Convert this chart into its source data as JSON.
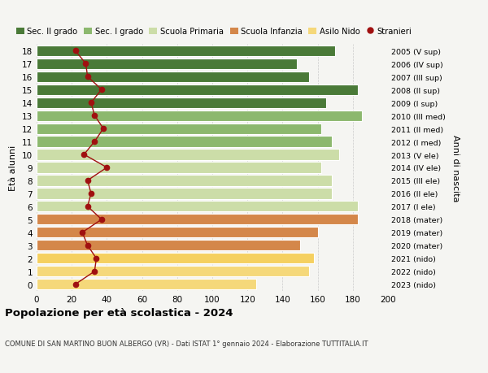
{
  "ages": [
    0,
    1,
    2,
    3,
    4,
    5,
    6,
    7,
    8,
    9,
    10,
    11,
    12,
    13,
    14,
    15,
    16,
    17,
    18
  ],
  "bar_values": [
    125,
    155,
    158,
    150,
    160,
    183,
    183,
    168,
    168,
    162,
    172,
    168,
    162,
    185,
    165,
    183,
    155,
    148,
    170
  ],
  "anni_nascita": [
    "2023 (nido)",
    "2022 (nido)",
    "2021 (nido)",
    "2020 (mater)",
    "2019 (mater)",
    "2018 (mater)",
    "2017 (I ele)",
    "2016 (II ele)",
    "2015 (III ele)",
    "2014 (IV ele)",
    "2013 (V ele)",
    "2012 (I med)",
    "2011 (II med)",
    "2010 (III med)",
    "2009 (I sup)",
    "2008 (II sup)",
    "2007 (III sup)",
    "2006 (IV sup)",
    "2005 (V sup)"
  ],
  "bar_colors": [
    "#f5d87a",
    "#f5d87a",
    "#f5d060",
    "#d4874a",
    "#d4874a",
    "#d4874a",
    "#ccdda8",
    "#ccdda8",
    "#ccdda8",
    "#ccdda8",
    "#ccdda8",
    "#8cb86e",
    "#8cb86e",
    "#8cb86e",
    "#4a7a38",
    "#4a7a38",
    "#4a7a38",
    "#4a7a38",
    "#4a7a38"
  ],
  "stranieri": [
    22,
    33,
    34,
    29,
    26,
    37,
    29,
    31,
    29,
    40,
    27,
    33,
    38,
    33,
    31,
    37,
    29,
    28,
    22
  ],
  "stranieri_color": "#a01010",
  "xlim": [
    0,
    200
  ],
  "xticks": [
    0,
    20,
    40,
    60,
    80,
    100,
    120,
    140,
    160,
    180,
    200
  ],
  "ylabel_left": "Età alunni",
  "ylabel_right": "Anni di nascita",
  "title": "Popolazione per età scolastica - 2024",
  "subtitle": "COMUNE DI SAN MARTINO BUON ALBERGO (VR) - Dati ISTAT 1° gennaio 2024 - Elaborazione TUTTITALIA.IT",
  "legend_labels": [
    "Sec. II grado",
    "Sec. I grado",
    "Scuola Primaria",
    "Scuola Infanzia",
    "Asilo Nido",
    "Stranieri"
  ],
  "legend_colors": [
    "#4a7a38",
    "#8cb86e",
    "#ccdda8",
    "#d4874a",
    "#f5d87a",
    "#a01010"
  ],
  "legend_marker_types": [
    "s",
    "s",
    "s",
    "s",
    "s",
    "o"
  ],
  "background_color": "#f5f5f2",
  "bar_height": 0.82
}
